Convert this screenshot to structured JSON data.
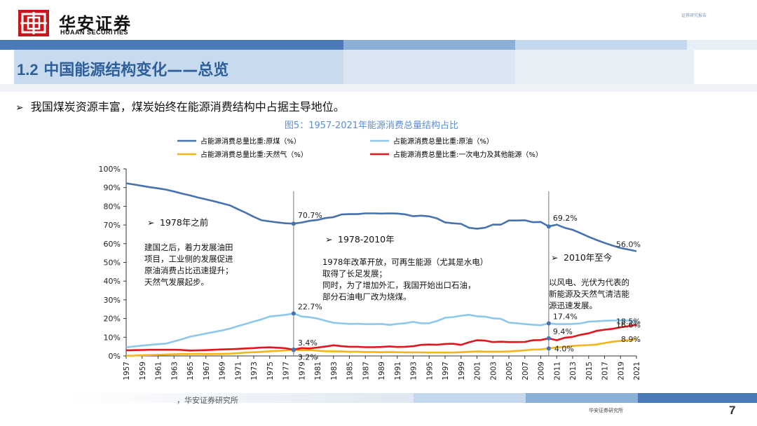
{
  "header": {
    "brand_cn": "华安证券",
    "brand_en": "HUAAN SECURITIES",
    "tagline": "证券研究报告"
  },
  "section": {
    "number": "1.2",
    "title": "中国能源结构变化——总览"
  },
  "bullet": "我国煤炭资源丰富，煤炭始终在能源消费结构中占据主导地位。",
  "figure_title": "图5：1957-2021年能源消费总量结构占比",
  "footer": {
    "source": "，华安证券研究所",
    "org": "华安证券研究所",
    "page": "7"
  },
  "colors": {
    "coal": "#4672ad",
    "oil": "#8cc8ec",
    "gas": "#f5b418",
    "clean": "#e3141c",
    "title": "#2f5f98",
    "brand": "#c4161c"
  },
  "chart_data": {
    "type": "line",
    "x": [
      1957,
      1958,
      1959,
      1960,
      1961,
      1962,
      1963,
      1964,
      1965,
      1966,
      1967,
      1968,
      1969,
      1970,
      1971,
      1972,
      1973,
      1974,
      1975,
      1976,
      1977,
      1978,
      1979,
      1980,
      1981,
      1982,
      1983,
      1984,
      1985,
      1986,
      1987,
      1988,
      1989,
      1990,
      1991,
      1992,
      1993,
      1994,
      1995,
      1996,
      1997,
      1998,
      1999,
      2000,
      2001,
      2002,
      2003,
      2004,
      2005,
      2006,
      2007,
      2008,
      2009,
      2010,
      2011,
      2012,
      2013,
      2014,
      2015,
      2016,
      2017,
      2018,
      2019,
      2020,
      2021
    ],
    "x_tick_labels": [
      "1957",
      "1959",
      "1961",
      "1963",
      "1965",
      "1967",
      "1969",
      "1971",
      "1973",
      "1975",
      "1977",
      "1979",
      "1981",
      "1983",
      "1985",
      "1987",
      "1989",
      "1991",
      "1993",
      "1995",
      "1997",
      "1999",
      "2001",
      "2003",
      "2005",
      "2007",
      "2009",
      "2011",
      "2013",
      "2015",
      "2017",
      "2019",
      "2021"
    ],
    "y_tick_labels": [
      "0%",
      "10%",
      "20%",
      "30%",
      "40%",
      "50%",
      "60%",
      "70%",
      "80%",
      "90%",
      "100%"
    ],
    "ylim": [
      0,
      100
    ],
    "series": [
      {
        "name": "占能源消费总量比重:原煤（%）",
        "color": "#4672ad",
        "values": [
          92.3,
          91.6,
          90.9,
          90.2,
          89.6,
          88.9,
          87.9,
          86.8,
          85.8,
          84.7,
          83.7,
          82.7,
          81.6,
          80.5,
          78.5,
          76.5,
          74.4,
          72.5,
          71.9,
          71.4,
          70.9,
          70.7,
          71.3,
          72.2,
          72.7,
          73.7,
          74.2,
          75.6,
          75.8,
          75.8,
          76.2,
          76.2,
          76.1,
          76.2,
          76.1,
          75.7,
          74.7,
          75.0,
          74.6,
          73.5,
          71.4,
          70.9,
          70.6,
          68.5,
          68.0,
          68.5,
          70.2,
          70.2,
          72.4,
          72.4,
          72.5,
          71.5,
          71.6,
          69.2,
          70.2,
          68.5,
          67.4,
          65.6,
          63.7,
          62.0,
          60.4,
          59.0,
          57.7,
          56.9,
          56.0
        ]
      },
      {
        "name": "占能源消费总量比重:原油（%）",
        "color": "#8cc8ec",
        "values": [
          4.6,
          5.1,
          5.5,
          5.9,
          6.3,
          6.6,
          7.8,
          8.9,
          10.3,
          11.1,
          12.0,
          12.8,
          13.6,
          14.6,
          15.9,
          17.1,
          18.4,
          19.6,
          21.1,
          21.5,
          22.0,
          22.7,
          21.1,
          20.7,
          20.0,
          18.8,
          17.7,
          17.4,
          17.1,
          17.2,
          17.0,
          17.0,
          17.1,
          16.6,
          17.1,
          17.5,
          18.2,
          17.4,
          17.5,
          18.7,
          20.4,
          20.8,
          21.5,
          22.0,
          21.2,
          21.0,
          20.1,
          19.9,
          17.8,
          17.5,
          17.0,
          16.7,
          16.4,
          17.4,
          17.0,
          17.0,
          17.1,
          17.4,
          18.3,
          18.5,
          18.8,
          18.9,
          19.0,
          18.9,
          18.5
        ]
      },
      {
        "name": "占能源消费总量比重:天然气（%）",
        "color": "#f5b418",
        "values": [
          0.1,
          0.2,
          0.4,
          0.5,
          0.6,
          0.8,
          0.9,
          1.0,
          1.0,
          1.1,
          1.0,
          1.0,
          1.1,
          1.2,
          1.5,
          1.8,
          2.0,
          2.2,
          2.5,
          2.7,
          3.0,
          3.2,
          3.1,
          3.1,
          2.8,
          2.5,
          2.4,
          2.4,
          2.2,
          2.3,
          2.1,
          2.1,
          2.0,
          2.1,
          2.0,
          1.9,
          1.9,
          1.9,
          1.8,
          1.8,
          1.8,
          1.8,
          2.0,
          2.2,
          2.4,
          2.3,
          2.3,
          2.3,
          2.4,
          2.7,
          3.0,
          3.4,
          3.5,
          4.0,
          4.6,
          4.8,
          5.3,
          5.6,
          5.8,
          6.1,
          6.9,
          7.6,
          8.0,
          8.4,
          8.9
        ]
      },
      {
        "name": "占能源消费总量比重:一次电力及其他能源（%）",
        "color": "#e3141c",
        "values": [
          3.0,
          3.1,
          3.2,
          3.3,
          3.3,
          3.3,
          3.3,
          3.2,
          2.9,
          3.0,
          3.1,
          3.3,
          3.5,
          3.6,
          3.8,
          4.0,
          4.2,
          4.5,
          4.6,
          4.4,
          4.1,
          3.4,
          4.2,
          4.0,
          4.5,
          5.0,
          5.7,
          5.2,
          4.9,
          4.9,
          4.7,
          4.7,
          4.8,
          5.1,
          4.8,
          4.9,
          5.2,
          5.9,
          6.1,
          6.0,
          6.4,
          6.5,
          5.9,
          7.3,
          8.4,
          8.2,
          7.4,
          7.6,
          7.4,
          7.4,
          7.5,
          8.4,
          8.5,
          9.4,
          8.4,
          9.7,
          10.2,
          11.3,
          12.1,
          13.4,
          14.0,
          14.5,
          15.3,
          15.9,
          16.6
        ]
      }
    ],
    "point_labels": [
      {
        "text": "70.7%",
        "year": 1978,
        "value": 70.7,
        "pos": "above"
      },
      {
        "text": "22.7%",
        "year": 1978,
        "value": 22.7,
        "pos": "above-right"
      },
      {
        "text": "3.4%",
        "year": 1978,
        "value": 3.4,
        "pos": "above-right"
      },
      {
        "text": "3.2%",
        "year": 1978,
        "value": 3.2,
        "pos": "below-right"
      },
      {
        "text": "69.2%",
        "year": 2010,
        "value": 69.2,
        "pos": "above"
      },
      {
        "text": "17.4%",
        "year": 2010,
        "value": 17.4,
        "pos": "above-right"
      },
      {
        "text": "9.4%",
        "year": 2010,
        "value": 9.4,
        "pos": "above-right"
      },
      {
        "text": "4.0%",
        "year": 2010,
        "value": 4.0,
        "pos": "right"
      },
      {
        "text": "56.0%",
        "year": 2021,
        "value": 56.0,
        "pos": "above-right"
      },
      {
        "text": "18.5%",
        "year": 2021,
        "value": 18.5,
        "pos": "right"
      },
      {
        "text": "16.6%",
        "year": 2021,
        "value": 16.6,
        "pos": "right"
      },
      {
        "text": "8.9%",
        "year": 2021,
        "value": 8.9,
        "pos": "right"
      }
    ],
    "vertical_markers": [
      1978,
      2010
    ],
    "annotations": [
      {
        "heading": "1978年之前",
        "lines": [
          "建国之后，着力发展油田",
          "项目，工业侧的发展促进",
          "原油消费占比迅速提升；",
          "天然气发展起步。"
        ]
      },
      {
        "heading": "1978-2010年",
        "lines": [
          "1978年改革开放，可再生能源（尤其是水电）",
          "取得了长足发展；",
          "同时，为了增加外汇，我国开始出口石油，",
          "部分石油电厂改为烧煤。"
        ]
      },
      {
        "heading": "2010年至今",
        "lines": [
          "以风电、光伏为代表的",
          "新能源及天然气清洁能",
          "源迅速发展。"
        ]
      }
    ]
  }
}
